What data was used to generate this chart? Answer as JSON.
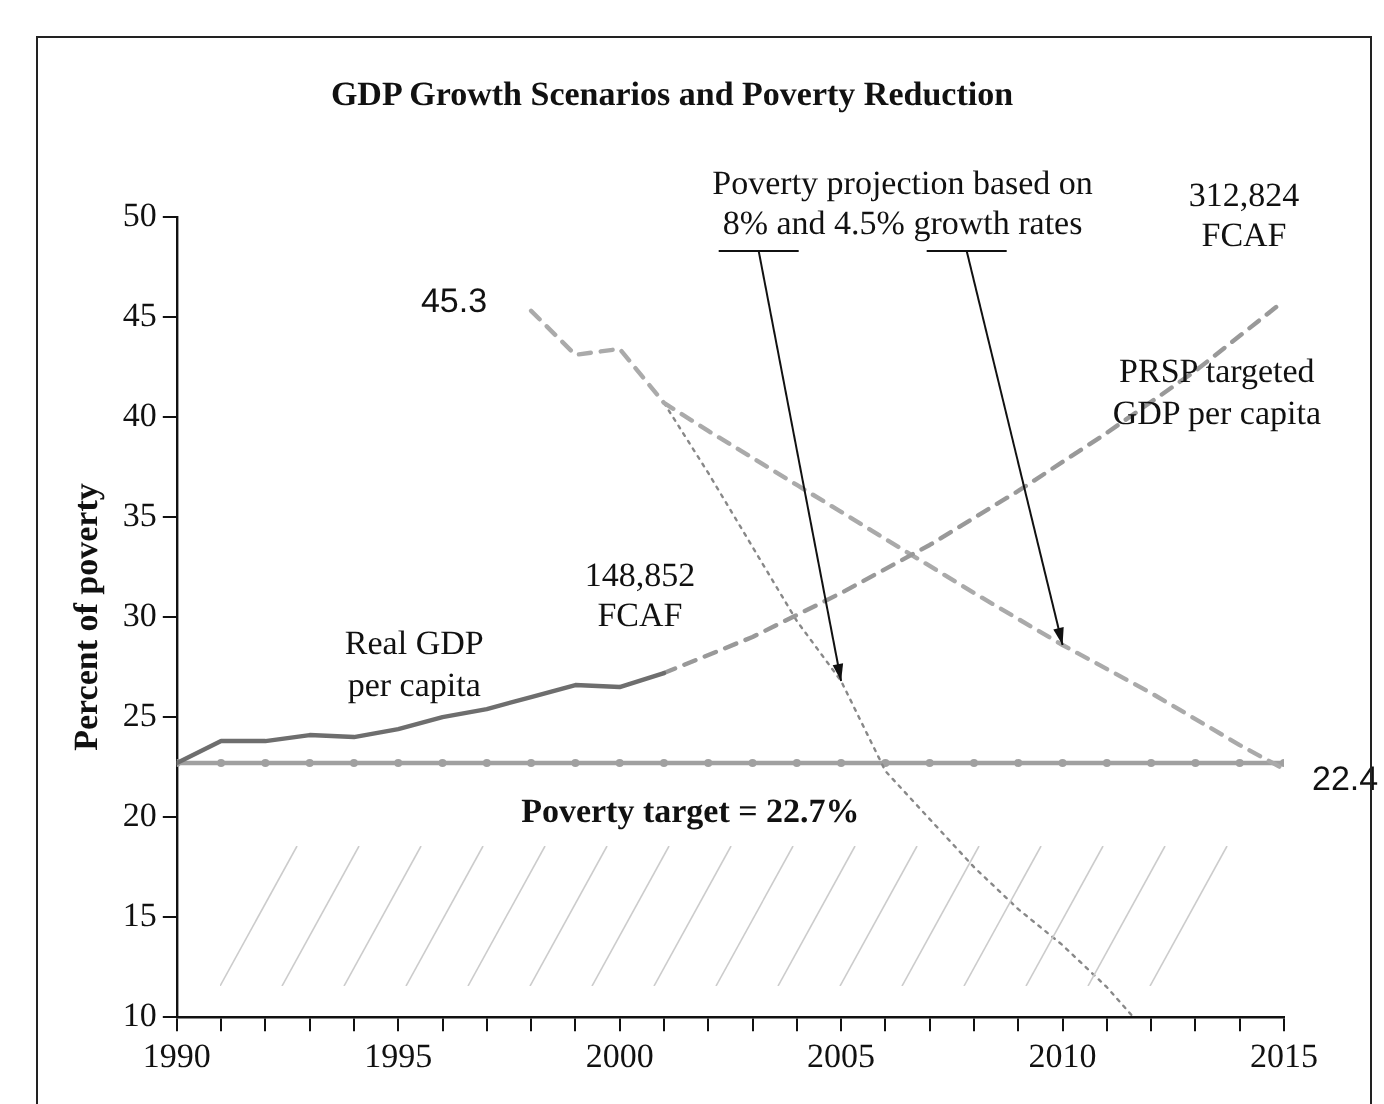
{
  "chart_data": {
    "type": "line",
    "title": "GDP Growth Scenarios and Poverty Reduction",
    "ylabel": "Percent of poverty",
    "xlim": [
      1990,
      2015
    ],
    "xticks": [
      1990,
      {
        "value": 1991,
        "label": null
      },
      {
        "value": 1992,
        "label": null
      },
      {
        "value": 1993,
        "label": null
      },
      {
        "value": 1994,
        "label": null
      },
      1995,
      {
        "value": 1996,
        "label": null
      },
      {
        "value": 1997,
        "label": null
      },
      {
        "value": 1998,
        "label": null
      },
      {
        "value": 1999,
        "label": null
      },
      2000,
      {
        "value": 2001,
        "label": null
      },
      {
        "value": 2002,
        "label": null
      },
      {
        "value": 2003,
        "label": null
      },
      {
        "value": 2004,
        "label": null
      },
      2005,
      {
        "value": 2006,
        "label": null
      },
      {
        "value": 2007,
        "label": null
      },
      {
        "value": 2008,
        "label": null
      },
      {
        "value": 2009,
        "label": null
      },
      2010,
      {
        "value": 2011,
        "label": null
      },
      {
        "value": 2012,
        "label": null
      },
      {
        "value": 2013,
        "label": null
      },
      {
        "value": 2014,
        "label": null
      },
      2015
    ],
    "ylim": [
      10,
      50
    ],
    "yticks": [
      10,
      15,
      20,
      25,
      30,
      35,
      40,
      45,
      50
    ],
    "grid": false,
    "legend": false,
    "marker": "none",
    "series": [
      {
        "name": "Real GDP per capita",
        "color": "#6e6e6e",
        "line_style": "solid",
        "x": [
          1990,
          1991,
          1992,
          1993,
          1994,
          1995,
          1996,
          1997,
          1998,
          1999,
          2000,
          2001
        ],
        "values": [
          22.7,
          23.8,
          23.8,
          24.1,
          24.0,
          24.4,
          25.0,
          25.4,
          26.0,
          26.6,
          26.5,
          27.2
        ]
      },
      {
        "name": "PRSP targeted GDP per capita",
        "color": "#999999",
        "line_style": "dashed",
        "x": [
          2001,
          2003,
          2005,
          2007,
          2009,
          2011,
          2013,
          2015
        ],
        "values": [
          27.2,
          29.0,
          31.2,
          33.6,
          36.3,
          39.2,
          42.3,
          45.8
        ]
      },
      {
        "color": "#aaaaaa",
        "line_style": "dashed",
        "x": [
          1998,
          1999,
          2000,
          2001,
          2002,
          2004,
          2006,
          2008,
          2010,
          2012,
          2014,
          2015
        ],
        "values": [
          45.3,
          43.1,
          43.4,
          40.7,
          39.3,
          36.6,
          33.9,
          31.2,
          28.6,
          26.2,
          23.6,
          22.4
        ]
      },
      {
        "color": "#888888",
        "line_style": "dotted",
        "x": [
          2001,
          2002,
          2003,
          2004,
          2005,
          2006,
          2007,
          2008,
          2009,
          2010,
          2011,
          2011.6
        ],
        "values": [
          40.7,
          37.2,
          33.5,
          29.8,
          26.8,
          22.3,
          19.9,
          17.5,
          15.4,
          13.6,
          11.5,
          10
        ]
      },
      {
        "color": "#a0a0a0",
        "line_style": "solid",
        "marker": "circle",
        "x": [
          1990,
          1991,
          1992,
          1993,
          1994,
          1995,
          1996,
          1997,
          1998,
          1999,
          2000,
          2001,
          2002,
          2003,
          2004,
          2005,
          2006,
          2007,
          2008,
          2009,
          2010,
          2011,
          2012,
          2013,
          2014,
          2015
        ],
        "values": [
          22.7,
          22.7,
          22.7,
          22.7,
          22.7,
          22.7,
          22.7,
          22.7,
          22.7,
          22.7,
          22.7,
          22.7,
          22.7,
          22.7,
          22.7,
          22.7,
          22.7,
          22.7,
          22.7,
          22.7,
          22.7,
          22.7,
          22.7,
          22.7,
          22.7,
          22.7
        ]
      }
    ],
    "annotations": [
      "Poverty target = 22.7%",
      {
        "text": "45.3",
        "x": 1998,
        "y": 45.3
      },
      {
        "text": "22.4",
        "x": 2015,
        "y": 22.4
      },
      {
        "text": "148,852 FCAF",
        "x": 2001,
        "y": 27.2
      },
      {
        "text": "312,824 FCAF",
        "x": 2015,
        "y": 45.8
      },
      {
        "text": "Poverty projection based on 8% and 4.5% growth rates",
        "x": 2010,
        "y": 28.6
      }
    ]
  }
}
